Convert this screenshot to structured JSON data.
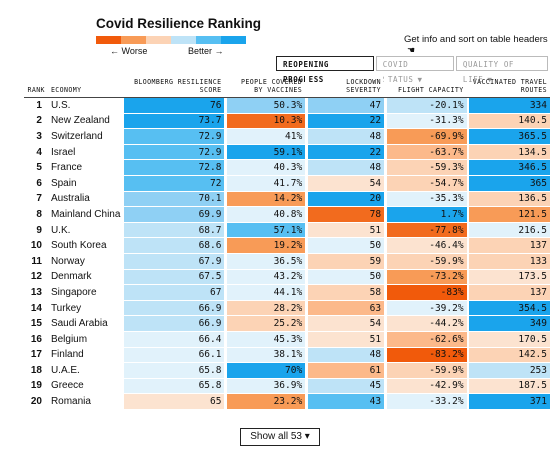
{
  "title": "Covid Resilience Ranking",
  "legend": {
    "worse": "← Worse",
    "better": "Better →",
    "colors": [
      "#f15a0b",
      "#f89b57",
      "#fcd3b5",
      "#bee3f7",
      "#57bff2",
      "#1aa4ec"
    ]
  },
  "hint": "Get info and sort on table headers",
  "tabs": [
    {
      "label": "REOPENING PROGRESS",
      "caret": ""
    },
    {
      "label": "COVID STATUS",
      "caret": "▼"
    },
    {
      "label": "QUALITY OF LIFE",
      "caret": "▼"
    }
  ],
  "headers": {
    "rank": "RANK",
    "economy": "ECONOMY",
    "score": "BLOOMBERG RESILIENCE SCORE",
    "vaccines": "PEOPLE COVERED BY VACCINES",
    "lockdown": "LOCKDOWN SEVERITY",
    "flight": "FLIGHT CAPACITY",
    "routes": "VACCINATED TRAVEL ROUTES"
  },
  "rows": [
    {
      "rank": "1",
      "economy": "U.S.",
      "score": "76",
      "vaccines": "50.3%",
      "lockdown": "47",
      "flight": "-20.1%",
      "routes": "334",
      "c": [
        "#1aa4ec",
        "#8fd0f4",
        "#8fd0f4",
        "#bee3f7",
        "#1aa4ec"
      ]
    },
    {
      "rank": "2",
      "economy": "New Zealand",
      "score": "73.7",
      "vaccines": "10.3%",
      "lockdown": "22",
      "flight": "-31.3%",
      "routes": "140.5",
      "c": [
        "#1aa4ec",
        "#f26b1e",
        "#1aa4ec",
        "#e1f2fb",
        "#fcd3b5"
      ]
    },
    {
      "rank": "3",
      "economy": "Switzerland",
      "score": "72.9",
      "vaccines": "41%",
      "lockdown": "48",
      "flight": "-69.9%",
      "routes": "365.5",
      "c": [
        "#57bff2",
        "#e1f2fb",
        "#bee3f7",
        "#f89b57",
        "#1aa4ec"
      ]
    },
    {
      "rank": "4",
      "economy": "Israel",
      "score": "72.9",
      "vaccines": "59.1%",
      "lockdown": "22",
      "flight": "-63.7%",
      "routes": "134.5",
      "c": [
        "#57bff2",
        "#1aa4ec",
        "#1aa4ec",
        "#fcb98a",
        "#fcd3b5"
      ]
    },
    {
      "rank": "5",
      "economy": "France",
      "score": "72.8",
      "vaccines": "40.3%",
      "lockdown": "48",
      "flight": "-59.3%",
      "routes": "346.5",
      "c": [
        "#57bff2",
        "#e1f2fb",
        "#bee3f7",
        "#fcd3b5",
        "#1aa4ec"
      ]
    },
    {
      "rank": "6",
      "economy": "Spain",
      "score": "72",
      "vaccines": "41.7%",
      "lockdown": "54",
      "flight": "-54.7%",
      "routes": "365",
      "c": [
        "#57bff2",
        "#e1f2fb",
        "#fce3d0",
        "#fcd3b5",
        "#1aa4ec"
      ]
    },
    {
      "rank": "7",
      "economy": "Australia",
      "score": "70.1",
      "vaccines": "14.2%",
      "lockdown": "20",
      "flight": "-35.3%",
      "routes": "136.5",
      "c": [
        "#8fd0f4",
        "#f89b57",
        "#1aa4ec",
        "#e1f2fb",
        "#fcd3b5"
      ]
    },
    {
      "rank": "8",
      "economy": "Mainland China",
      "score": "69.9",
      "vaccines": "40.8%",
      "lockdown": "78",
      "flight": "1.7%",
      "routes": "121.5",
      "c": [
        "#8fd0f4",
        "#e1f2fb",
        "#f26b1e",
        "#1aa4ec",
        "#f89b57"
      ]
    },
    {
      "rank": "9",
      "economy": "U.K.",
      "score": "68.7",
      "vaccines": "57.1%",
      "lockdown": "51",
      "flight": "-77.8%",
      "routes": "216.5",
      "c": [
        "#bee3f7",
        "#57bff2",
        "#fce3d0",
        "#f26b1e",
        "#e1f2fb"
      ]
    },
    {
      "rank": "10",
      "economy": "South Korea",
      "score": "68.6",
      "vaccines": "19.2%",
      "lockdown": "50",
      "flight": "-46.4%",
      "routes": "137",
      "c": [
        "#bee3f7",
        "#f89b57",
        "#e1f2fb",
        "#fce3d0",
        "#fcd3b5"
      ]
    },
    {
      "rank": "11",
      "economy": "Norway",
      "score": "67.9",
      "vaccines": "36.5%",
      "lockdown": "59",
      "flight": "-59.9%",
      "routes": "133",
      "c": [
        "#bee3f7",
        "#e1f2fb",
        "#fcd3b5",
        "#fcd3b5",
        "#fcd3b5"
      ]
    },
    {
      "rank": "12",
      "economy": "Denmark",
      "score": "67.5",
      "vaccines": "43.2%",
      "lockdown": "50",
      "flight": "-73.2%",
      "routes": "173.5",
      "c": [
        "#bee3f7",
        "#e1f2fb",
        "#e1f2fb",
        "#f89b57",
        "#fce3d0"
      ]
    },
    {
      "rank": "13",
      "economy": "Singapore",
      "score": "67",
      "vaccines": "44.1%",
      "lockdown": "58",
      "flight": "-83%",
      "routes": "137",
      "c": [
        "#bee3f7",
        "#e1f2fb",
        "#fcd3b5",
        "#f15a0b",
        "#fcd3b5"
      ]
    },
    {
      "rank": "14",
      "economy": "Turkey",
      "score": "66.9",
      "vaccines": "28.2%",
      "lockdown": "63",
      "flight": "-39.2%",
      "routes": "354.5",
      "c": [
        "#bee3f7",
        "#fcd3b5",
        "#fcb98a",
        "#e1f2fb",
        "#1aa4ec"
      ]
    },
    {
      "rank": "15",
      "economy": "Saudi Arabia",
      "score": "66.9",
      "vaccines": "25.2%",
      "lockdown": "54",
      "flight": "-44.2%",
      "routes": "349",
      "c": [
        "#bee3f7",
        "#fcd3b5",
        "#fce3d0",
        "#fce3d0",
        "#1aa4ec"
      ]
    },
    {
      "rank": "16",
      "economy": "Belgium",
      "score": "66.4",
      "vaccines": "45.3%",
      "lockdown": "51",
      "flight": "-62.6%",
      "routes": "170.5",
      "c": [
        "#e1f2fb",
        "#e1f2fb",
        "#fce3d0",
        "#fcb98a",
        "#fce3d0"
      ]
    },
    {
      "rank": "17",
      "economy": "Finland",
      "score": "66.1",
      "vaccines": "38.1%",
      "lockdown": "48",
      "flight": "-83.2%",
      "routes": "142.5",
      "c": [
        "#e1f2fb",
        "#e1f2fb",
        "#bee3f7",
        "#f15a0b",
        "#fcd3b5"
      ]
    },
    {
      "rank": "18",
      "economy": "U.A.E.",
      "score": "65.8",
      "vaccines": "70%",
      "lockdown": "61",
      "flight": "-59.9%",
      "routes": "253",
      "c": [
        "#e1f2fb",
        "#1aa4ec",
        "#fcb98a",
        "#fcd3b5",
        "#bee3f7"
      ]
    },
    {
      "rank": "19",
      "economy": "Greece",
      "score": "65.8",
      "vaccines": "36.9%",
      "lockdown": "45",
      "flight": "-42.9%",
      "routes": "187.5",
      "c": [
        "#e1f2fb",
        "#e1f2fb",
        "#bee3f7",
        "#fce3d0",
        "#fce3d0"
      ]
    },
    {
      "rank": "20",
      "economy": "Romania",
      "score": "65",
      "vaccines": "23.2%",
      "lockdown": "43",
      "flight": "-33.2%",
      "routes": "371",
      "c": [
        "#fce3d0",
        "#f89b57",
        "#57bff2",
        "#e1f2fb",
        "#1aa4ec"
      ]
    }
  ],
  "show_all": "Show all 53 ▾"
}
